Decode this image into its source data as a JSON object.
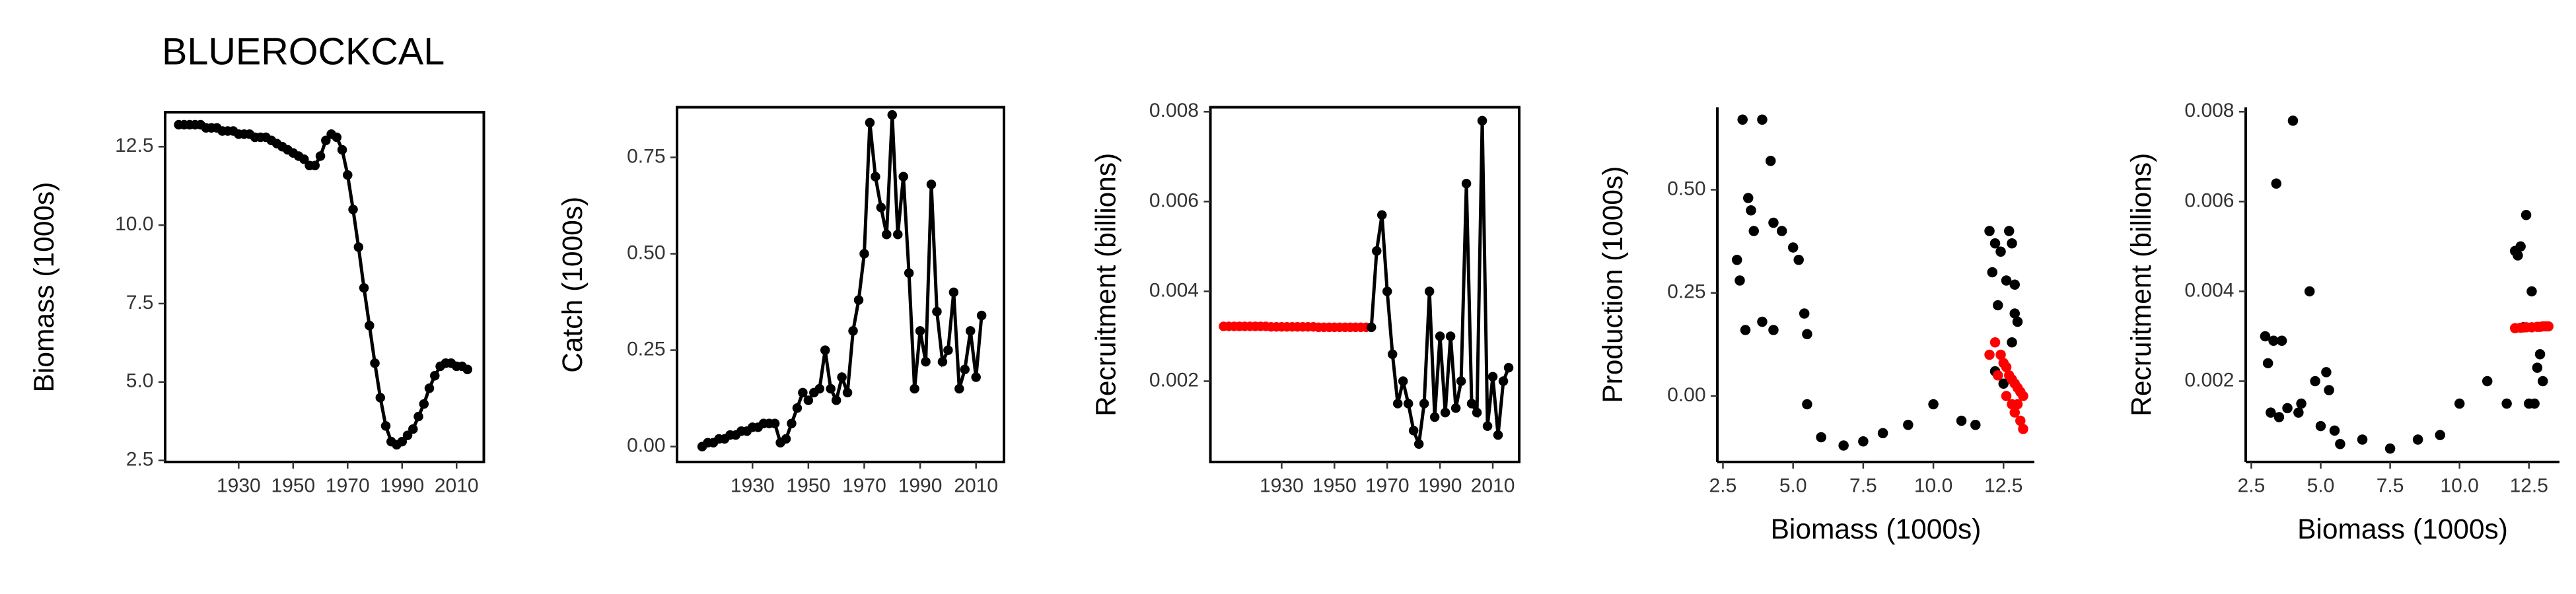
{
  "chart_data": [
    {
      "type": "line",
      "title": "BLUEROCKCAL",
      "ylabel": "Biomass (1000s)",
      "box": true,
      "xlim": [
        1903,
        2020
      ],
      "xticks": [
        1930,
        1950,
        1970,
        1990,
        2010
      ],
      "ylim": [
        2.45,
        13.6
      ],
      "yticks": [
        2.5,
        {
          "value": 5,
          "label": "5.0"
        },
        {
          "value": 7.5,
          "label": "7.5"
        },
        {
          "value": 10,
          "label": "10.0"
        },
        12.5
      ],
      "series": [
        {
          "color": "#000000",
          "x": [
            1908,
            1910,
            1912,
            1914,
            1916,
            1918,
            1920,
            1922,
            1924,
            1926,
            1928,
            1930,
            1932,
            1934,
            1936,
            1938,
            1940,
            1942,
            1944,
            1946,
            1948,
            1950,
            1952,
            1954,
            1956,
            1958,
            1960,
            1962,
            1964,
            1966,
            1968,
            1970,
            1972,
            1974,
            1976,
            1978,
            1980,
            1982,
            1984,
            1986,
            1988,
            1990,
            1992,
            1994,
            1996,
            1998,
            2000,
            2002,
            2004,
            2006,
            2008,
            2010,
            2012,
            2014
          ],
          "values": [
            13.2,
            13.2,
            13.2,
            13.2,
            13.2,
            13.1,
            13.1,
            13.1,
            13.0,
            13.0,
            13.0,
            12.9,
            12.9,
            12.9,
            12.8,
            12.8,
            12.8,
            12.7,
            12.6,
            12.5,
            12.4,
            12.3,
            12.2,
            12.1,
            11.9,
            11.9,
            12.2,
            12.7,
            12.9,
            12.8,
            12.4,
            11.6,
            10.5,
            9.3,
            8.0,
            6.8,
            5.6,
            4.5,
            3.6,
            3.1,
            3.0,
            3.1,
            3.3,
            3.5,
            3.9,
            4.3,
            4.8,
            5.2,
            5.5,
            5.6,
            5.6,
            5.5,
            5.5,
            5.4
          ]
        }
      ]
    },
    {
      "type": "line",
      "ylabel": "Catch (1000s)",
      "box": true,
      "xlim": [
        1903,
        2020
      ],
      "xticks": [
        1930,
        1950,
        1970,
        1990,
        2010
      ],
      "ylim": [
        -0.04,
        0.88
      ],
      "yticks": [
        {
          "value": 0,
          "label": "0.00"
        },
        0.25,
        {
          "value": 0.5,
          "label": "0.50"
        },
        0.75
      ],
      "series": [
        {
          "color": "#000000",
          "x": [
            1912,
            1914,
            1916,
            1918,
            1920,
            1922,
            1924,
            1926,
            1928,
            1930,
            1932,
            1934,
            1936,
            1938,
            1940,
            1942,
            1944,
            1946,
            1948,
            1950,
            1952,
            1954,
            1956,
            1958,
            1960,
            1962,
            1964,
            1966,
            1968,
            1970,
            1972,
            1974,
            1976,
            1978,
            1980,
            1982,
            1984,
            1986,
            1988,
            1990,
            1992,
            1994,
            1996,
            1998,
            2000,
            2002,
            2004,
            2006,
            2008,
            2010,
            2012
          ],
          "values": [
            0,
            0.01,
            0.01,
            0.02,
            0.02,
            0.03,
            0.03,
            0.04,
            0.04,
            0.05,
            0.05,
            0.06,
            0.06,
            0.06,
            0.01,
            0.02,
            0.06,
            0.1,
            0.14,
            0.12,
            0.14,
            0.15,
            0.25,
            0.15,
            0.12,
            0.18,
            0.14,
            0.3,
            0.38,
            0.5,
            0.84,
            0.7,
            0.62,
            0.55,
            0.86,
            0.55,
            0.7,
            0.45,
            0.15,
            0.3,
            0.22,
            0.68,
            0.35,
            0.22,
            0.25,
            0.4,
            0.15,
            0.2,
            0.3,
            0.18,
            0.34
          ]
        }
      ]
    },
    {
      "type": "line",
      "ylabel": "Recruitment (billions)",
      "box": true,
      "xlim": [
        1903,
        2020
      ],
      "xticks": [
        1930,
        1950,
        1970,
        1990,
        2010
      ],
      "ylim": [
        0.0002,
        0.0081
      ],
      "yticks": [
        0.002,
        0.004,
        0.006,
        0.008
      ],
      "series": [
        {
          "color": "#ff0000",
          "x": [
            1908,
            1910,
            1912,
            1914,
            1916,
            1918,
            1920,
            1922,
            1924,
            1926,
            1928,
            1930,
            1932,
            1934,
            1936,
            1938,
            1940,
            1942,
            1944,
            1946,
            1948,
            1950,
            1952,
            1954,
            1956,
            1958,
            1960,
            1962
          ],
          "values": [
            0.00322,
            0.00322,
            0.00322,
            0.00322,
            0.00322,
            0.00322,
            0.00322,
            0.00322,
            0.00322,
            0.00321,
            0.00321,
            0.00321,
            0.00321,
            0.00321,
            0.00321,
            0.00321,
            0.00321,
            0.00321,
            0.0032,
            0.0032,
            0.0032,
            0.0032,
            0.0032,
            0.0032,
            0.0032,
            0.0032,
            0.0032,
            0.0032
          ]
        },
        {
          "color": "#000000",
          "x": [
            1964,
            1966,
            1968,
            1970,
            1972,
            1974,
            1976,
            1978,
            1980,
            1982,
            1984,
            1986,
            1988,
            1990,
            1992,
            1994,
            1996,
            1998,
            2000,
            2002,
            2004,
            2006,
            2008,
            2010,
            2012,
            2014,
            2016
          ],
          "values": [
            0.0032,
            0.0049,
            0.0057,
            0.004,
            0.0026,
            0.0015,
            0.002,
            0.0015,
            0.0009,
            0.0006,
            0.0015,
            0.004,
            0.0012,
            0.003,
            0.0013,
            0.003,
            0.0014,
            0.002,
            0.0064,
            0.0015,
            0.0013,
            0.0078,
            0.001,
            0.0021,
            0.0008,
            0.002,
            0.0023
          ]
        }
      ]
    },
    {
      "type": "scatter",
      "ylabel": "Production (1000s)",
      "xlabel": "Biomass (1000s)",
      "box": false,
      "xlim": [
        2.3,
        13.6
      ],
      "xticks": [
        2.5,
        {
          "value": 5,
          "label": "5.0"
        },
        7.5,
        {
          "value": 10,
          "label": "10.0"
        },
        12.5
      ],
      "ylim": [
        -0.16,
        0.7
      ],
      "yticks": [
        {
          "value": 0,
          "label": "0.00"
        },
        0.25,
        {
          "value": 0.5,
          "label": "0.50"
        }
      ],
      "series": [
        {
          "color": "#000000",
          "x": [
            3.0,
            3.1,
            3.2,
            3.3,
            3.4,
            3.5,
            3.6,
            3.9,
            3.9,
            4.2,
            4.3,
            4.3,
            4.6,
            5.0,
            5.2,
            5.4,
            5.5,
            5.5,
            6.0,
            6.8,
            7.5,
            8.2,
            9.1,
            10.0,
            11.0,
            11.5,
            12.0,
            12.2,
            12.4,
            12.1,
            12.3,
            12.7,
            12.8,
            12.6,
            12.9,
            12.8,
            12.2,
            12.5,
            12.9,
            13.0
          ],
          "values": [
            0.33,
            0.28,
            0.67,
            0.16,
            0.48,
            0.45,
            0.4,
            0.18,
            0.67,
            0.57,
            0.16,
            0.42,
            0.4,
            0.36,
            0.33,
            0.2,
            0.15,
            -0.02,
            -0.1,
            -0.12,
            -0.11,
            -0.09,
            -0.07,
            -0.02,
            -0.06,
            -0.07,
            0.4,
            0.37,
            0.35,
            0.3,
            0.22,
            0.4,
            0.37,
            0.28,
            0.2,
            0.13,
            0.06,
            0.03,
            0.27,
            0.18
          ]
        },
        {
          "color": "#ff0000",
          "x": [
            12.0,
            12.2,
            12.4,
            12.5,
            12.6,
            12.7,
            12.8,
            12.9,
            13.0,
            13.1,
            13.2,
            13.0,
            12.9,
            12.8,
            13.1,
            13.2,
            12.3,
            12.6
          ],
          "values": [
            0.1,
            0.13,
            0.1,
            0.08,
            0.07,
            0.05,
            0.04,
            0.03,
            0.02,
            0.01,
            0,
            -0.02,
            -0.04,
            -0.02,
            -0.06,
            -0.08,
            0.05,
            0
          ]
        }
      ]
    },
    {
      "type": "scatter",
      "ylabel": "Recruitment (billions)",
      "xlabel": "Biomass (1000s)",
      "box": false,
      "xlim": [
        2.3,
        13.6
      ],
      "xticks": [
        2.5,
        {
          "value": 5,
          "label": "5.0"
        },
        7.5,
        {
          "value": 10,
          "label": "10.0"
        },
        12.5
      ],
      "ylim": [
        0.0002,
        0.0081
      ],
      "yticks": [
        0.002,
        0.004,
        0.006,
        0.008
      ],
      "series": [
        {
          "color": "#000000",
          "x": [
            3.0,
            3.1,
            3.2,
            3.3,
            3.4,
            3.5,
            3.6,
            3.8,
            4.0,
            4.2,
            4.3,
            4.6,
            4.8,
            5.0,
            5.2,
            5.3,
            5.5,
            5.7,
            6.5,
            7.5,
            8.5,
            9.3,
            10.0,
            11.0,
            11.7,
            12.0,
            12.2,
            12.4,
            12.6,
            12.5,
            12.7,
            12.9,
            13.0,
            12.8,
            12.3,
            12.1
          ],
          "values": [
            0.003,
            0.0024,
            0.0013,
            0.0029,
            0.0064,
            0.0012,
            0.0029,
            0.0014,
            0.0078,
            0.0013,
            0.0015,
            0.004,
            0.002,
            0.001,
            0.0022,
            0.0018,
            0.0009,
            0.0006,
            0.0007,
            0.0005,
            0.0007,
            0.0008,
            0.0015,
            0.002,
            0.0015,
            0.0049,
            0.005,
            0.0057,
            0.004,
            0.0015,
            0.0015,
            0.0026,
            0.002,
            0.0023,
            0.0032,
            0.0048
          ]
        },
        {
          "color": "#ff0000",
          "x": [
            12.0,
            12.2,
            12.4,
            12.6,
            12.8,
            12.9,
            13.0,
            13.1,
            13.2
          ],
          "values": [
            0.00318,
            0.00319,
            0.0032,
            0.0032,
            0.00321,
            0.00321,
            0.00322,
            0.00322,
            0.00322
          ]
        }
      ]
    }
  ]
}
